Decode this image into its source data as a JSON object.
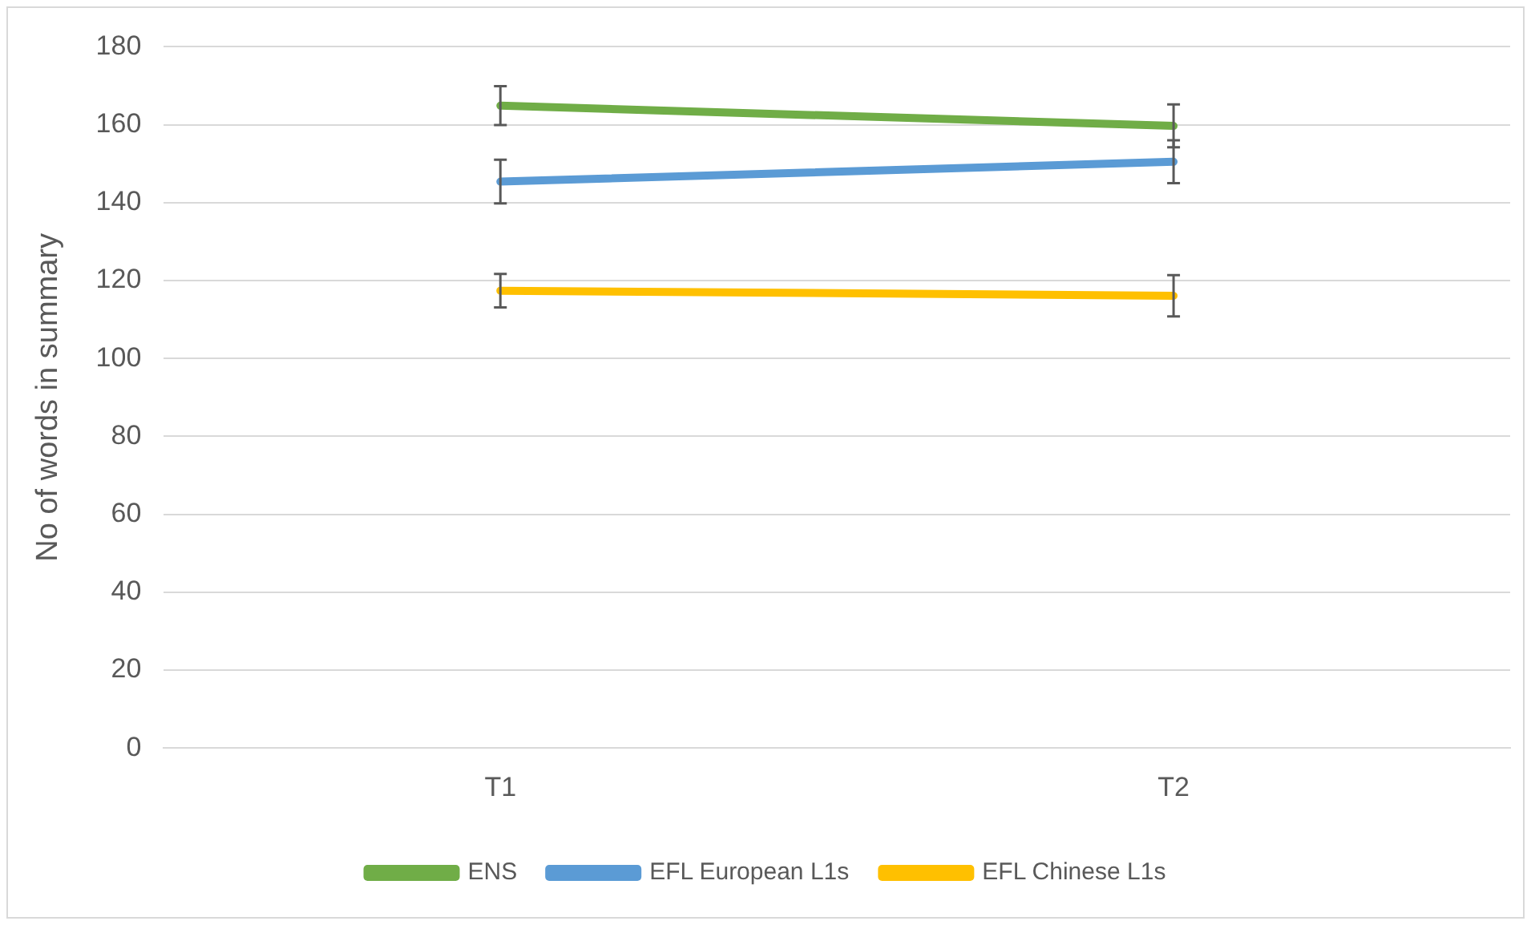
{
  "chart_data": {
    "type": "line",
    "ylabel": "No of words in summary",
    "categories": [
      "T1",
      "T2"
    ],
    "series": [
      {
        "name": "ENS",
        "color": "#70ad47",
        "values": [
          164.9,
          159.7
        ],
        "errors": [
          5,
          5.5
        ]
      },
      {
        "name": "EFL European L1s",
        "color": "#5b9bd5",
        "values": [
          145.4,
          150.5
        ],
        "errors": [
          5.6,
          5.5
        ]
      },
      {
        "name": "EFL Chinese L1s",
        "color": "#ffc000",
        "values": [
          117.4,
          116.1
        ],
        "errors": [
          4.3,
          5.3
        ]
      }
    ],
    "ylim": [
      0,
      180
    ],
    "yticks": [
      0,
      20,
      40,
      60,
      80,
      100,
      120,
      140,
      160,
      180
    ],
    "grid": "y",
    "legend": "bottom",
    "marker": "none",
    "line_style": "solid"
  }
}
